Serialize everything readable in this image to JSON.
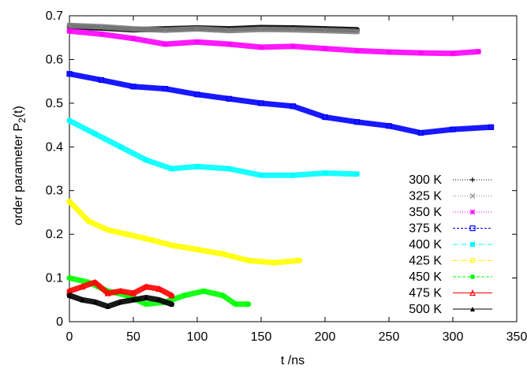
{
  "chart_data": {
    "type": "line",
    "xlabel": "t /ns",
    "ylabel_main": "order parameter P",
    "ylabel_sub": "2",
    "ylabel_tail": "(t)",
    "xlim": [
      0,
      350
    ],
    "ylim": [
      0,
      0.7
    ],
    "xticks": [
      "0",
      "50",
      "100",
      "150",
      "200",
      "250",
      "300",
      "350"
    ],
    "yticks": [
      "0",
      "0.1",
      "0.2",
      "0.3",
      "0.4",
      "0.5",
      "0.6",
      "0.7"
    ],
    "grid": false,
    "legend_position": "right",
    "series": [
      {
        "name": "300 K",
        "color": "#000000",
        "marker": "plus",
        "dash": "1,2",
        "x": [
          0,
          25,
          50,
          75,
          100,
          125,
          150,
          175,
          200,
          225
        ],
        "y": [
          0.675,
          0.672,
          0.668,
          0.67,
          0.672,
          0.67,
          0.673,
          0.672,
          0.67,
          0.668
        ]
      },
      {
        "name": "325 K",
        "color": "#808080",
        "marker": "x",
        "dash": "1,2",
        "x": [
          0,
          25,
          50,
          75,
          100,
          125,
          150,
          175,
          200,
          225
        ],
        "y": [
          0.678,
          0.675,
          0.67,
          0.667,
          0.67,
          0.666,
          0.669,
          0.668,
          0.666,
          0.664
        ]
      },
      {
        "name": "350 K",
        "color": "#ff00ff",
        "marker": "star",
        "dash": "1,2",
        "x": [
          0,
          25,
          50,
          75,
          100,
          125,
          150,
          175,
          200,
          225,
          250,
          275,
          300,
          320
        ],
        "y": [
          0.665,
          0.658,
          0.648,
          0.635,
          0.64,
          0.635,
          0.628,
          0.63,
          0.625,
          0.62,
          0.617,
          0.615,
          0.614,
          0.618
        ]
      },
      {
        "name": "375 K",
        "color": "#0000ff",
        "marker": "square",
        "dash": "3,2",
        "x": [
          0,
          25,
          50,
          75,
          100,
          125,
          150,
          175,
          200,
          225,
          250,
          275,
          300,
          330
        ],
        "y": [
          0.567,
          0.553,
          0.538,
          0.533,
          0.52,
          0.51,
          0.5,
          0.493,
          0.468,
          0.457,
          0.448,
          0.432,
          0.44,
          0.445
        ]
      },
      {
        "name": "400 K",
        "color": "#00ffff",
        "marker": "filled-square",
        "dash": "6,2,1,2",
        "x": [
          0,
          20,
          40,
          60,
          80,
          100,
          125,
          150,
          175,
          200,
          225
        ],
        "y": [
          0.46,
          0.43,
          0.4,
          0.37,
          0.35,
          0.355,
          0.35,
          0.335,
          0.335,
          0.34,
          0.338
        ]
      },
      {
        "name": "425 K",
        "color": "#ffff00",
        "marker": "circle",
        "dash": "6,2,1,2",
        "x": [
          0,
          15,
          30,
          45,
          60,
          80,
          100,
          120,
          140,
          160,
          180
        ],
        "y": [
          0.275,
          0.23,
          0.21,
          0.2,
          0.19,
          0.175,
          0.165,
          0.155,
          0.14,
          0.135,
          0.14
        ]
      },
      {
        "name": "450 K",
        "color": "#00ff00",
        "marker": "filled-circle",
        "dash": "4,2",
        "x": [
          0,
          15,
          30,
          45,
          60,
          75,
          90,
          105,
          120,
          130,
          140
        ],
        "y": [
          0.1,
          0.09,
          0.07,
          0.06,
          0.04,
          0.045,
          0.06,
          0.07,
          0.06,
          0.04,
          0.04
        ]
      },
      {
        "name": "475 K",
        "color": "#ff0000",
        "marker": "triangle",
        "dash": "",
        "x": [
          0,
          10,
          20,
          30,
          40,
          50,
          60,
          70,
          80
        ],
        "y": [
          0.07,
          0.08,
          0.09,
          0.065,
          0.07,
          0.065,
          0.08,
          0.075,
          0.06
        ]
      },
      {
        "name": "500 K",
        "color": "#000000",
        "marker": "filled-triangle",
        "dash": "",
        "x": [
          0,
          10,
          20,
          30,
          40,
          50,
          60,
          70,
          80
        ],
        "y": [
          0.06,
          0.05,
          0.045,
          0.035,
          0.045,
          0.05,
          0.055,
          0.05,
          0.04
        ]
      }
    ]
  }
}
